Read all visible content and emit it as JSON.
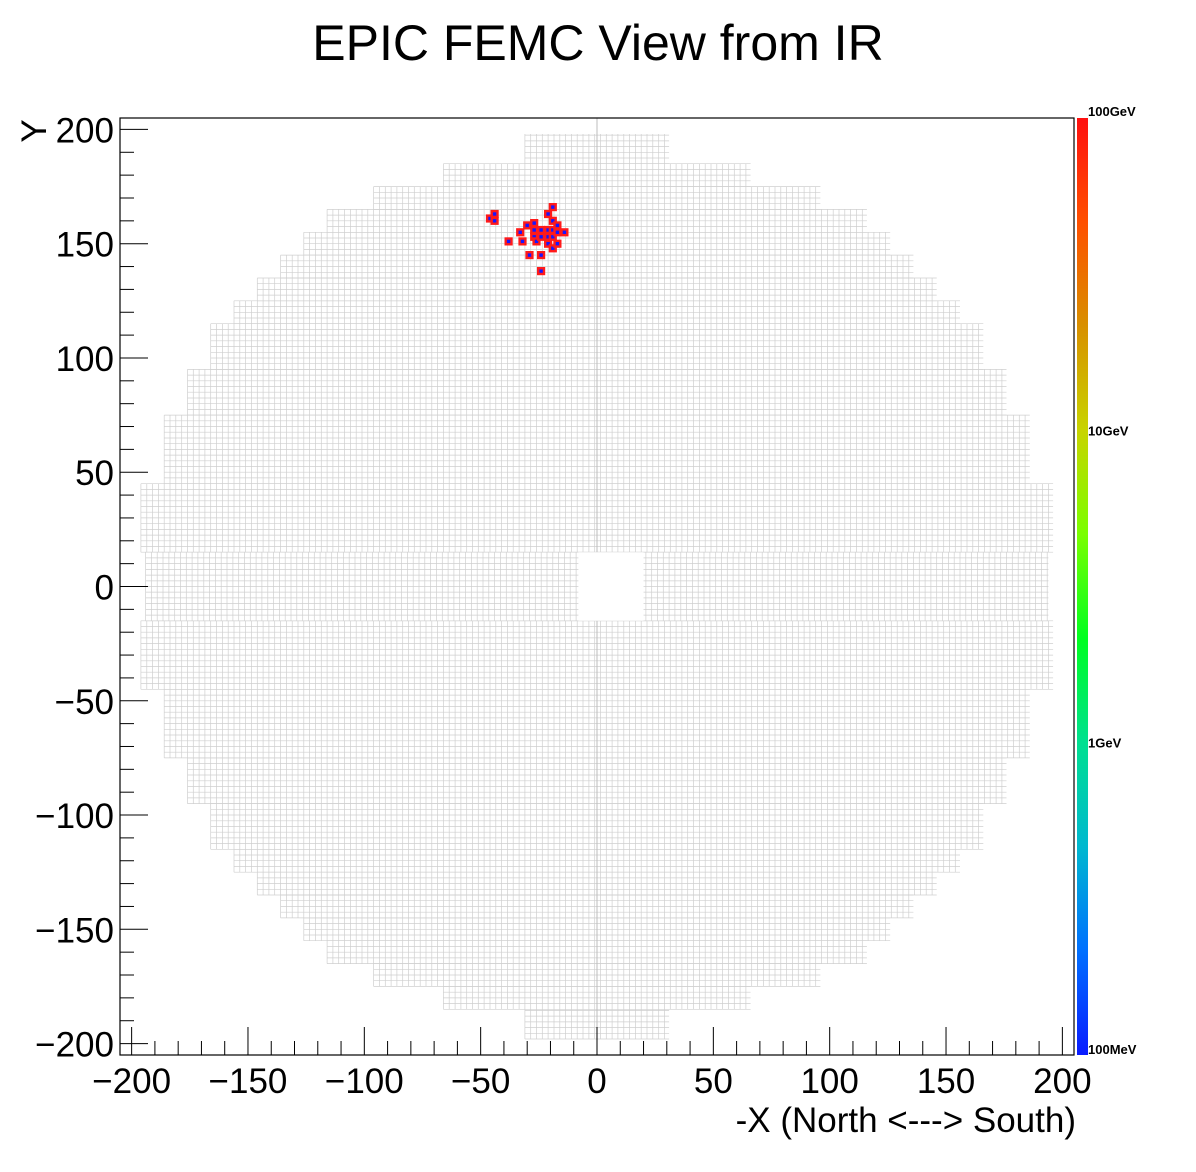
{
  "chart_data": {
    "type": "heatmap",
    "title": "EPIC FEMC View from IR",
    "xlabel": "-X (North <---> South)",
    "ylabel": "Y",
    "xlim": [
      -205,
      205
    ],
    "ylim": [
      -205,
      205
    ],
    "x_ticks": [
      -200,
      -150,
      -100,
      -50,
      0,
      50,
      100,
      150,
      200
    ],
    "x_tick_labels": [
      "−200",
      "−150",
      "−100",
      "−50",
      "0",
      "50",
      "100",
      "150",
      "200"
    ],
    "y_ticks": [
      -200,
      -150,
      -100,
      -50,
      0,
      50,
      100,
      150,
      200
    ],
    "y_tick_labels": [
      "−200",
      "−150",
      "−100",
      "−50",
      "0",
      "50",
      "100",
      "150",
      "200"
    ],
    "cell_size": 2.5,
    "detector_outline": {
      "row_bands": [
        [
          -2.5,
          2.5,
          -194,
          194
        ],
        [
          2.5,
          15,
          -194,
          194
        ],
        [
          -15,
          -2.5,
          -194,
          194
        ],
        [
          15,
          45,
          -196,
          196
        ],
        [
          -45,
          -15,
          -196,
          196
        ],
        [
          45,
          75,
          -186,
          186
        ],
        [
          -75,
          -45,
          -186,
          186
        ],
        [
          75,
          95,
          -176,
          176
        ],
        [
          -95,
          -75,
          -176,
          176
        ],
        [
          95,
          115,
          -166,
          166
        ],
        [
          -115,
          -95,
          -166,
          166
        ],
        [
          115,
          125,
          -156,
          156
        ],
        [
          -125,
          -115,
          -156,
          156
        ],
        [
          125,
          135,
          -146,
          146
        ],
        [
          -135,
          -125,
          -146,
          146
        ],
        [
          135,
          145,
          -136,
          136
        ],
        [
          -145,
          -135,
          -136,
          136
        ],
        [
          145,
          155,
          -126,
          126
        ],
        [
          -155,
          -145,
          -126,
          126
        ],
        [
          155,
          165,
          -116,
          116
        ],
        [
          -165,
          -155,
          -116,
          116
        ],
        [
          165,
          175,
          -96,
          96
        ],
        [
          -175,
          -165,
          -96,
          96
        ],
        [
          175,
          185,
          -66,
          66
        ],
        [
          -185,
          -175,
          -66,
          66
        ],
        [
          185,
          198,
          -31,
          31
        ],
        [
          -198,
          -185,
          -31,
          31
        ]
      ],
      "beam_hole": [
        -8,
        20,
        -15,
        15
      ]
    },
    "hits": [
      {
        "x": -46,
        "y": 161,
        "e": 120
      },
      {
        "x": -44,
        "y": 163,
        "e": 120
      },
      {
        "x": -44,
        "y": 160,
        "e": 120
      },
      {
        "x": -38,
        "y": 151,
        "e": 120
      },
      {
        "x": -33,
        "y": 155,
        "e": 120
      },
      {
        "x": -32,
        "y": 151,
        "e": 120
      },
      {
        "x": -30,
        "y": 158,
        "e": 120
      },
      {
        "x": -29,
        "y": 145,
        "e": 120
      },
      {
        "x": -27,
        "y": 159,
        "e": 120
      },
      {
        "x": -27,
        "y": 156,
        "e": 120
      },
      {
        "x": -27,
        "y": 153,
        "e": 120
      },
      {
        "x": -26,
        "y": 151,
        "e": 120
      },
      {
        "x": -24,
        "y": 145,
        "e": 120
      },
      {
        "x": -24,
        "y": 138,
        "e": 120
      },
      {
        "x": -24,
        "y": 156,
        "e": 120
      },
      {
        "x": -24,
        "y": 153,
        "e": 120
      },
      {
        "x": -21,
        "y": 163,
        "e": 120
      },
      {
        "x": -21,
        "y": 156,
        "e": 120
      },
      {
        "x": -21,
        "y": 153,
        "e": 120
      },
      {
        "x": -21,
        "y": 150,
        "e": 120
      },
      {
        "x": -19,
        "y": 166,
        "e": 120
      },
      {
        "x": -19,
        "y": 160,
        "e": 120
      },
      {
        "x": -19,
        "y": 156,
        "e": 120
      },
      {
        "x": -19,
        "y": 153,
        "e": 120
      },
      {
        "x": -19,
        "y": 148,
        "e": 120
      },
      {
        "x": -17,
        "y": 158,
        "e": 120
      },
      {
        "x": -17,
        "y": 155,
        "e": 120
      },
      {
        "x": -17,
        "y": 150,
        "e": 120
      },
      {
        "x": -14,
        "y": 155,
        "e": 120
      }
    ],
    "colorbar": {
      "scale": "log",
      "range": [
        0.1,
        100
      ],
      "ticks": [
        0.1,
        1,
        10,
        100
      ],
      "tick_labels": [
        "100MeV",
        "1GeV",
        "10GeV",
        "100GeV"
      ],
      "colors": [
        "#0a1cff",
        "#0070ff",
        "#00b8d0",
        "#00e090",
        "#00ff20",
        "#7aff00",
        "#c8d400",
        "#d89000",
        "#ff5000",
        "#ff1010"
      ]
    },
    "colors": {
      "grid": "#cfcfcf",
      "hit_fill": "#1616ff",
      "hit_border": "#ff1a1a"
    }
  }
}
